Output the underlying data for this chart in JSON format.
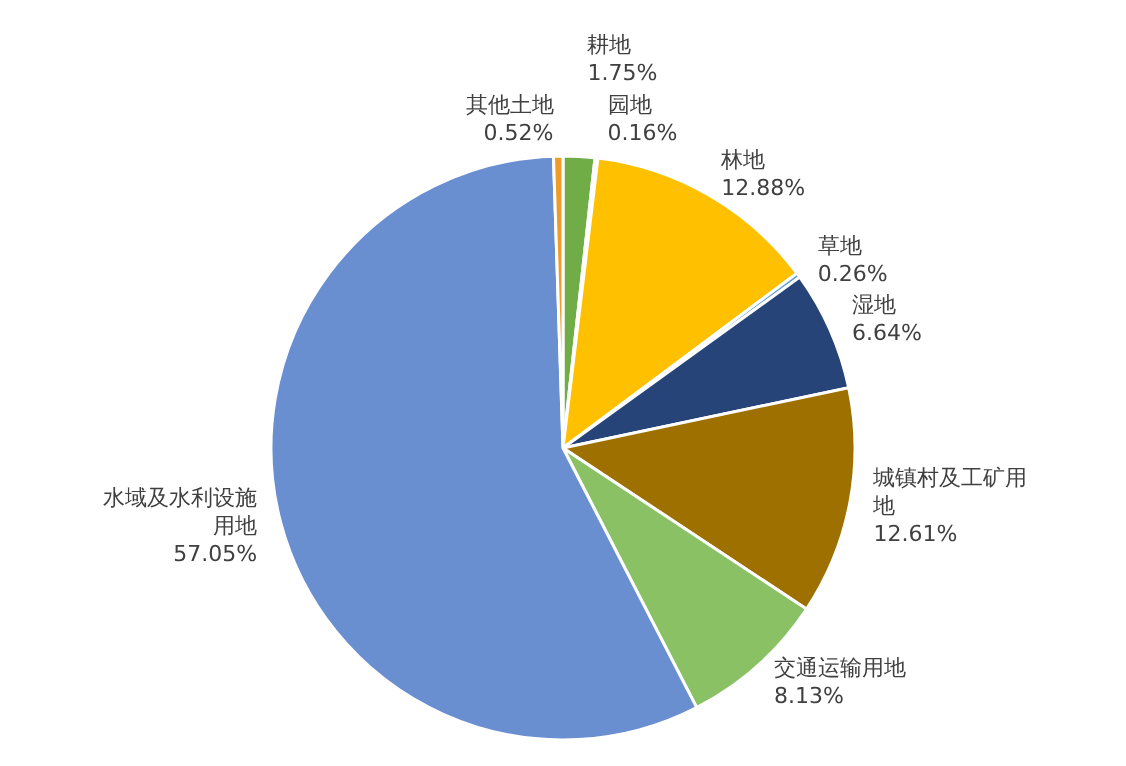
{
  "chart_data": {
    "type": "pie",
    "categories": [
      "耕地",
      "园地",
      "林地",
      "草地",
      "湿地",
      "城镇村及工矿用地",
      "交通运输用地",
      "水域及水利设施用地",
      "其他土地"
    ],
    "values": [
      1.75,
      0.16,
      12.88,
      0.26,
      6.64,
      12.61,
      8.13,
      57.05,
      0.52
    ],
    "value_labels": [
      "1.75%",
      "0.16%",
      "12.88%",
      "0.26%",
      "6.64%",
      "12.61%",
      "8.13%",
      "57.05%",
      "0.52%"
    ],
    "colors": [
      "#70ad47",
      "#a5a5a5",
      "#ffc000",
      "#5b9bd5",
      "#264478",
      "#9e7000",
      "#8bc165",
      "#6a8fd0",
      "#ed9c28"
    ]
  }
}
